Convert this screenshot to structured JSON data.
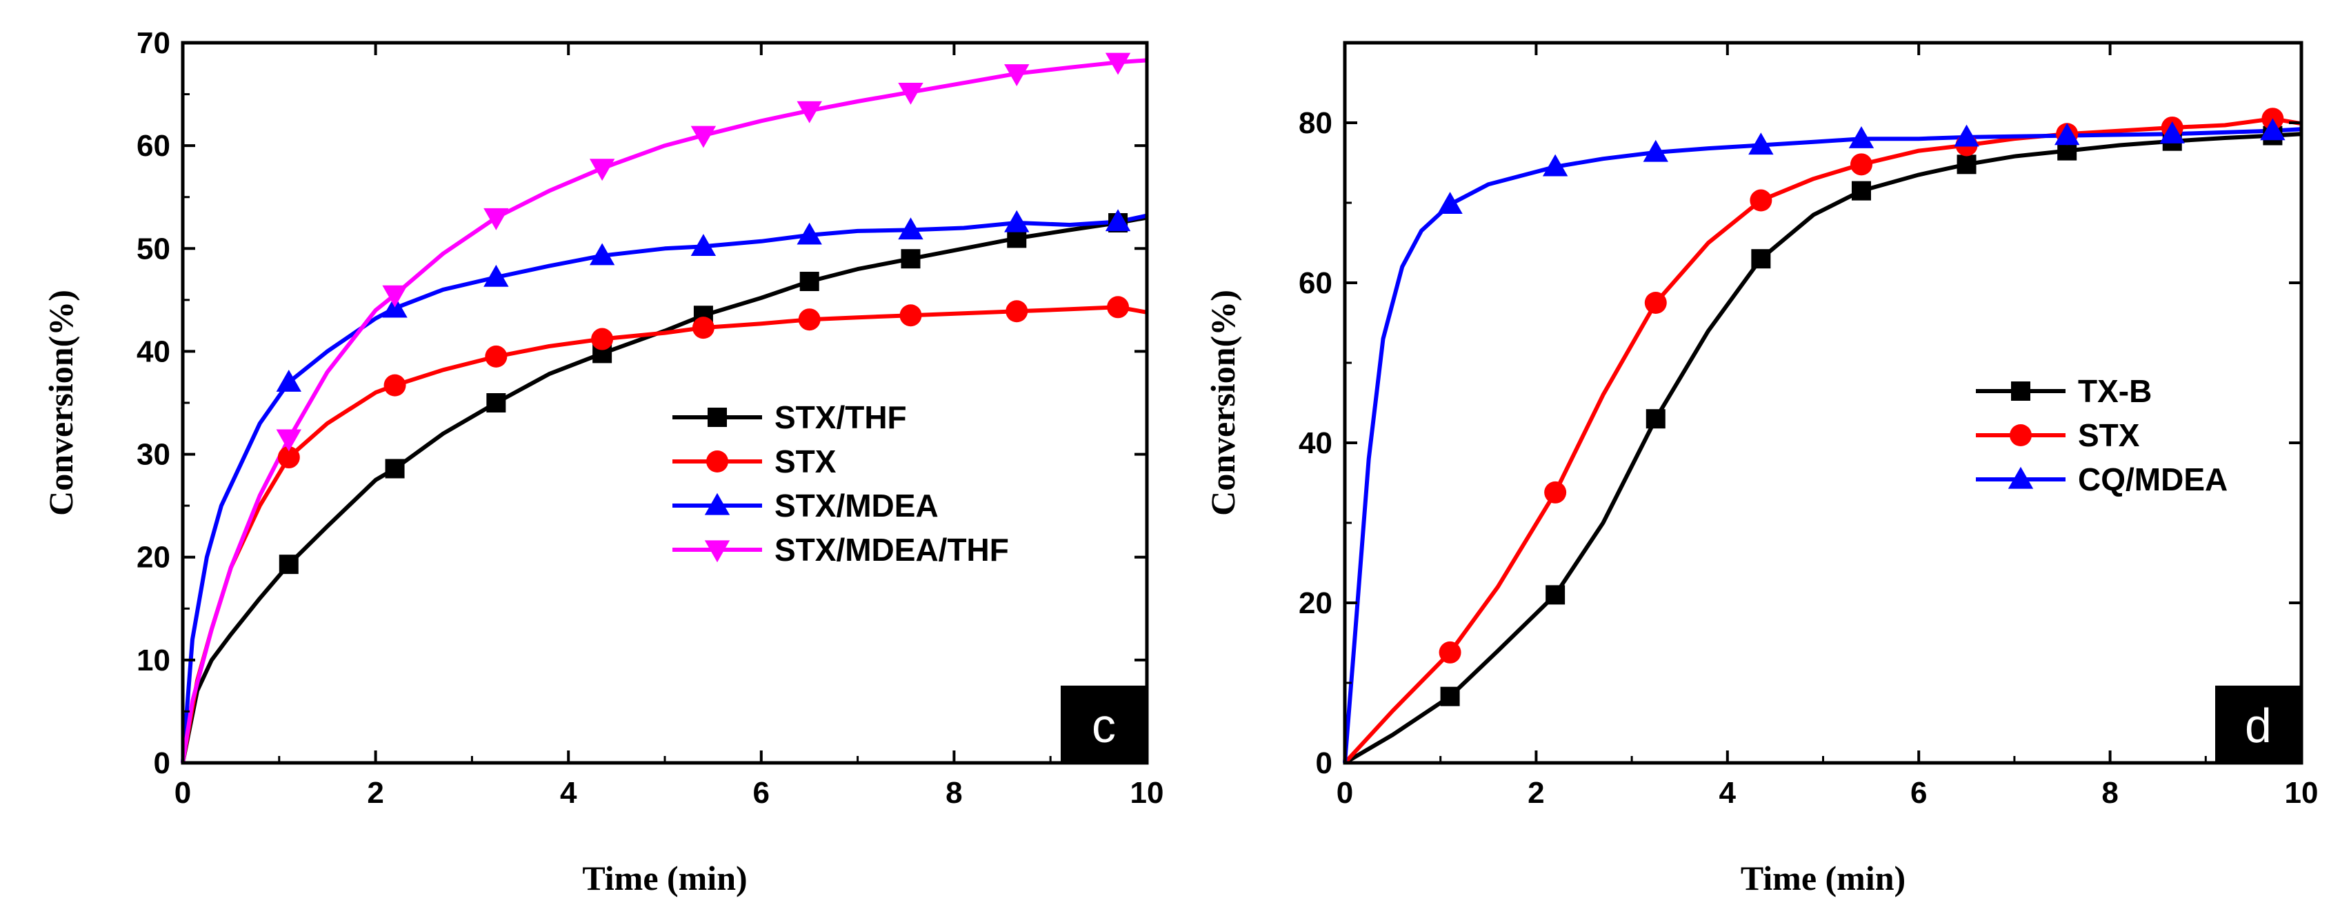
{
  "chart_data": [
    {
      "type": "line",
      "panel_label": "c",
      "xlabel": "Time (min)",
      "ylabel": "Conversion(%)",
      "xlim": [
        0,
        10
      ],
      "ylim": [
        0,
        70
      ],
      "xticks": [
        0,
        2,
        4,
        6,
        8,
        10
      ],
      "yticks": [
        0,
        10,
        20,
        30,
        40,
        50,
        60,
        70
      ],
      "legend_position": "center-right",
      "series": [
        {
          "name": "STX/THF",
          "color": "#000000",
          "marker": "square",
          "x": [
            0,
            0.15,
            0.3,
            0.5,
            0.8,
            1.1,
            1.5,
            2.0,
            2.2,
            2.7,
            3.25,
            3.8,
            4.35,
            5.0,
            5.4,
            6.0,
            6.5,
            7.0,
            7.55,
            8.1,
            8.65,
            9.2,
            9.7,
            10
          ],
          "y": [
            0,
            7,
            10,
            12.5,
            16,
            19.3,
            23,
            27.5,
            28.6,
            32,
            35,
            37.8,
            39.8,
            42,
            43.5,
            45.2,
            46.8,
            48,
            49,
            50,
            51,
            51.8,
            52.5,
            53
          ],
          "marker_x": [
            1.1,
            2.2,
            3.25,
            4.35,
            5.4,
            6.5,
            7.55,
            8.65,
            9.7
          ]
        },
        {
          "name": "STX",
          "color": "#ff0000",
          "marker": "circle",
          "x": [
            0,
            0.15,
            0.3,
            0.5,
            0.8,
            1.1,
            1.5,
            2.0,
            2.2,
            2.7,
            3.25,
            3.8,
            4.35,
            5.0,
            5.4,
            6.0,
            6.5,
            7.0,
            7.55,
            8.1,
            8.65,
            9.2,
            9.7,
            10
          ],
          "y": [
            0,
            8,
            13,
            19,
            25,
            29.7,
            33,
            36,
            36.7,
            38.2,
            39.5,
            40.5,
            41.2,
            41.8,
            42.3,
            42.7,
            43.1,
            43.3,
            43.5,
            43.7,
            43.9,
            44.1,
            44.3,
            43.8
          ],
          "marker_x": [
            1.1,
            2.2,
            3.25,
            4.35,
            5.4,
            6.5,
            7.55,
            8.65,
            9.7
          ]
        },
        {
          "name": "STX/MDEA",
          "color": "#0000ff",
          "marker": "triangle-up",
          "x": [
            0,
            0.1,
            0.25,
            0.4,
            0.6,
            0.8,
            1.1,
            1.5,
            2.0,
            2.2,
            2.7,
            3.25,
            3.8,
            4.35,
            5.0,
            5.4,
            6.0,
            6.5,
            7.0,
            7.55,
            8.1,
            8.65,
            9.2,
            9.7,
            10
          ],
          "y": [
            0,
            12,
            20,
            25,
            29,
            33,
            37,
            40,
            43.2,
            44.2,
            46,
            47.2,
            48.3,
            49.3,
            50,
            50.2,
            50.7,
            51.3,
            51.7,
            51.8,
            52,
            52.5,
            52.3,
            52.6,
            53.2
          ],
          "marker_x": [
            1.1,
            2.2,
            3.25,
            4.35,
            5.4,
            6.5,
            7.55,
            8.65,
            9.7
          ]
        },
        {
          "name": "STX/MDEA/THF",
          "color": "#ff00ff",
          "marker": "triangle-down",
          "x": [
            0,
            0.1,
            0.3,
            0.5,
            0.8,
            1.1,
            1.5,
            2.0,
            2.2,
            2.7,
            3.25,
            3.8,
            4.35,
            5.0,
            5.4,
            6.0,
            6.5,
            7.0,
            7.55,
            8.1,
            8.65,
            9.2,
            9.7,
            10
          ],
          "y": [
            0,
            6,
            13,
            19,
            26,
            31.5,
            38,
            44,
            45.5,
            49.5,
            53,
            55.6,
            57.8,
            60,
            61,
            62.4,
            63.4,
            64.3,
            65.2,
            66.1,
            67,
            67.6,
            68.1,
            68.3
          ],
          "marker_x": [
            1.1,
            2.2,
            3.25,
            4.35,
            5.4,
            6.5,
            7.55,
            8.65,
            9.7
          ]
        }
      ]
    },
    {
      "type": "line",
      "panel_label": "d",
      "xlabel": "Time (min)",
      "ylabel": "Conversion(%)",
      "xlim": [
        0,
        10
      ],
      "ylim": [
        0,
        90
      ],
      "xticks": [
        0,
        2,
        4,
        6,
        8,
        10
      ],
      "yticks": [
        0,
        20,
        40,
        60,
        80
      ],
      "legend_position": "center-right",
      "series": [
        {
          "name": "TX-B",
          "color": "#000000",
          "marker": "square",
          "x": [
            0,
            0.5,
            1.1,
            1.6,
            2.2,
            2.7,
            3.25,
            3.8,
            4.35,
            4.9,
            5.4,
            6.0,
            6.5,
            7.0,
            7.55,
            8.1,
            8.65,
            9.2,
            9.7,
            10
          ],
          "y": [
            0,
            3.5,
            8.3,
            14,
            21,
            30,
            43,
            54,
            63,
            68.5,
            71.5,
            73.5,
            74.8,
            75.8,
            76.5,
            77.2,
            77.7,
            78.1,
            78.4,
            78.6
          ],
          "marker_x": [
            1.1,
            2.2,
            3.25,
            4.35,
            5.4,
            6.5,
            7.55,
            8.65,
            9.7
          ]
        },
        {
          "name": "STX",
          "color": "#ff0000",
          "marker": "circle",
          "x": [
            0,
            0.5,
            1.1,
            1.6,
            2.2,
            2.7,
            3.25,
            3.8,
            4.35,
            4.9,
            5.4,
            6.0,
            6.5,
            7.0,
            7.55,
            8.1,
            8.65,
            9.2,
            9.7,
            10
          ],
          "y": [
            0,
            6.5,
            13.8,
            22,
            33.8,
            46,
            57.5,
            65,
            70.3,
            73,
            74.8,
            76.5,
            77.2,
            78,
            78.6,
            79,
            79.4,
            79.7,
            80.5,
            79.9
          ],
          "marker_x": [
            1.1,
            2.2,
            3.25,
            4.35,
            5.4,
            6.5,
            7.55,
            8.65,
            9.7
          ]
        },
        {
          "name": "CQ/MDEA",
          "color": "#0000ff",
          "marker": "triangle-up",
          "x": [
            0,
            0.1,
            0.25,
            0.4,
            0.6,
            0.8,
            1.1,
            1.5,
            2.2,
            2.7,
            3.25,
            3.8,
            4.35,
            4.9,
            5.4,
            6.0,
            6.5,
            7.0,
            7.55,
            8.1,
            8.65,
            9.2,
            9.7,
            10
          ],
          "y": [
            0,
            15,
            38,
            53,
            62,
            66.5,
            69.8,
            72.3,
            74.5,
            75.5,
            76.3,
            76.8,
            77.2,
            77.6,
            78,
            78,
            78.2,
            78.3,
            78.4,
            78.5,
            78.6,
            78.8,
            79,
            79.2
          ],
          "marker_x": [
            1.1,
            2.2,
            3.25,
            4.35,
            5.4,
            6.5,
            7.55,
            8.65,
            9.7
          ]
        }
      ]
    }
  ]
}
